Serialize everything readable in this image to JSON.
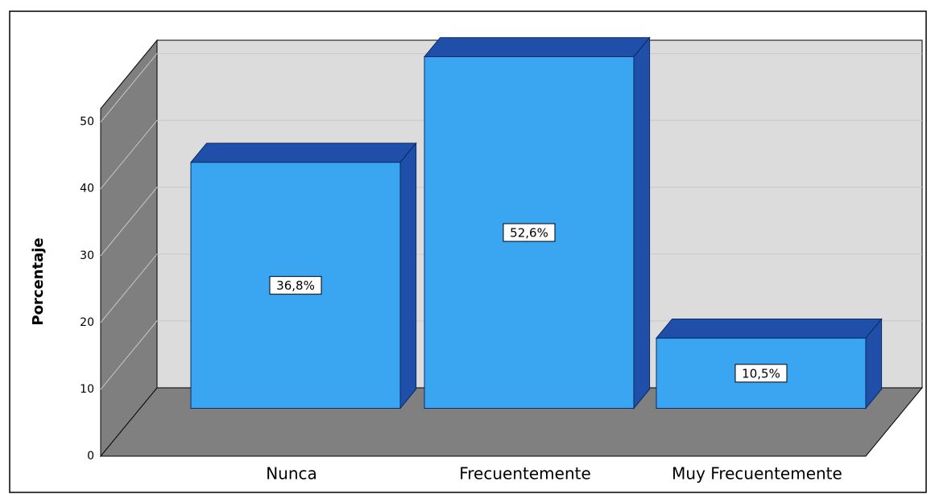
{
  "chart_data": {
    "type": "bar3d",
    "y_label": "Porcentaje",
    "categories": [
      "Nunca",
      "Frecuentemente",
      "Muy Frecuentemente"
    ],
    "values": [
      36.8,
      52.6,
      10.5
    ],
    "value_labels": [
      "36,8%",
      "52,6%",
      "10,5%"
    ],
    "color": "#3aa6f2",
    "ylim": [
      0,
      52
    ],
    "yticks": [
      0,
      10,
      20,
      30,
      40,
      50
    ],
    "grid": true
  }
}
